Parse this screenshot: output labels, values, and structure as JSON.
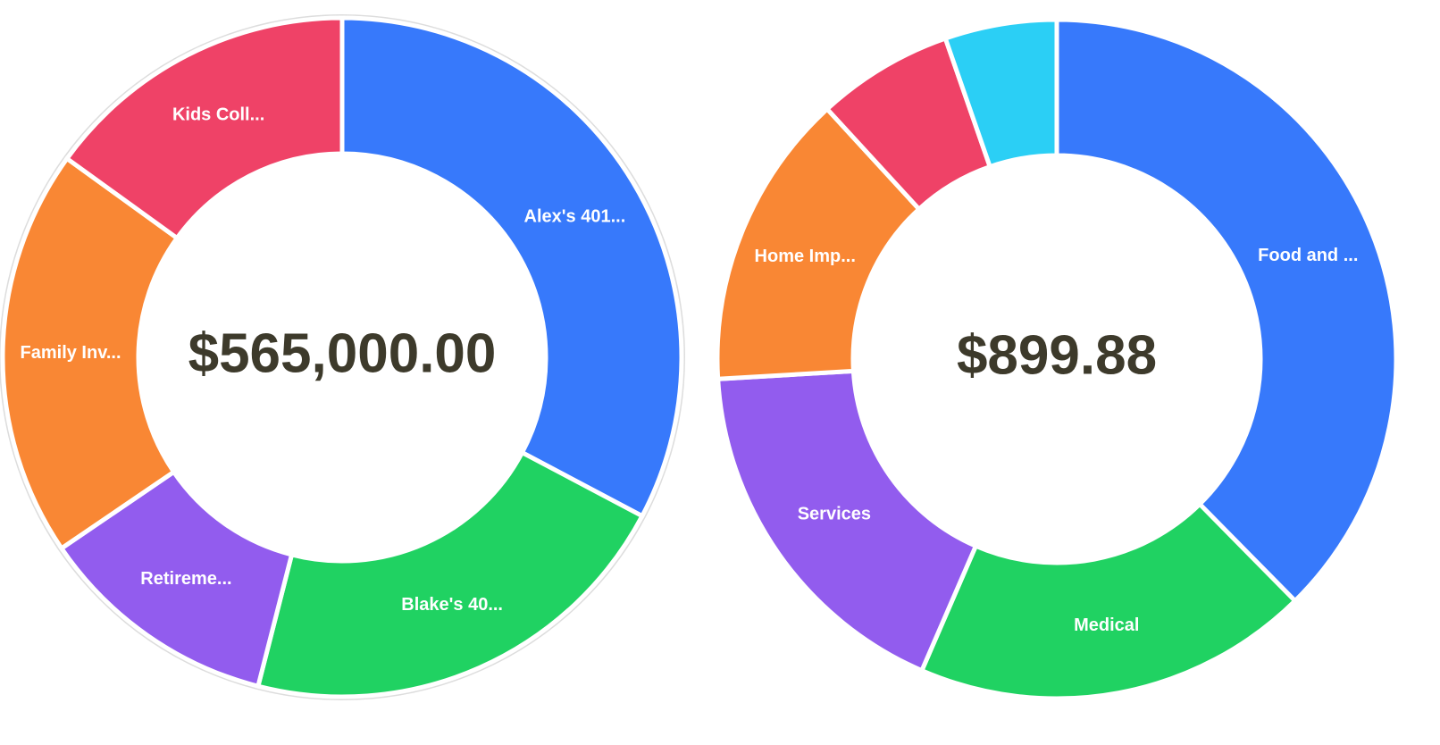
{
  "chart_data": [
    {
      "type": "donut",
      "center_label": "$565,000.00",
      "categories": [
        "Alex's 401...",
        "Blake's 40...",
        "Retireme...",
        "Family Inv...",
        "Kids Coll..."
      ],
      "values": [
        185000,
        120000,
        65000,
        110000,
        85000
      ],
      "colors": [
        "#3779fb",
        "#20d262",
        "#925cee",
        "#f98734",
        "#ef4267"
      ]
    },
    {
      "type": "donut",
      "center_label": "$899.88",
      "categories": [
        "Food and ...",
        "Medical",
        "Services",
        "Home Imp...",
        null,
        null
      ],
      "values": [
        338.5,
        170,
        158,
        127,
        58.5,
        47.88
      ],
      "colors": [
        "#3779fb",
        "#20d262",
        "#925cee",
        "#f98734",
        "#ef4267",
        "#2bcff5"
      ]
    }
  ]
}
